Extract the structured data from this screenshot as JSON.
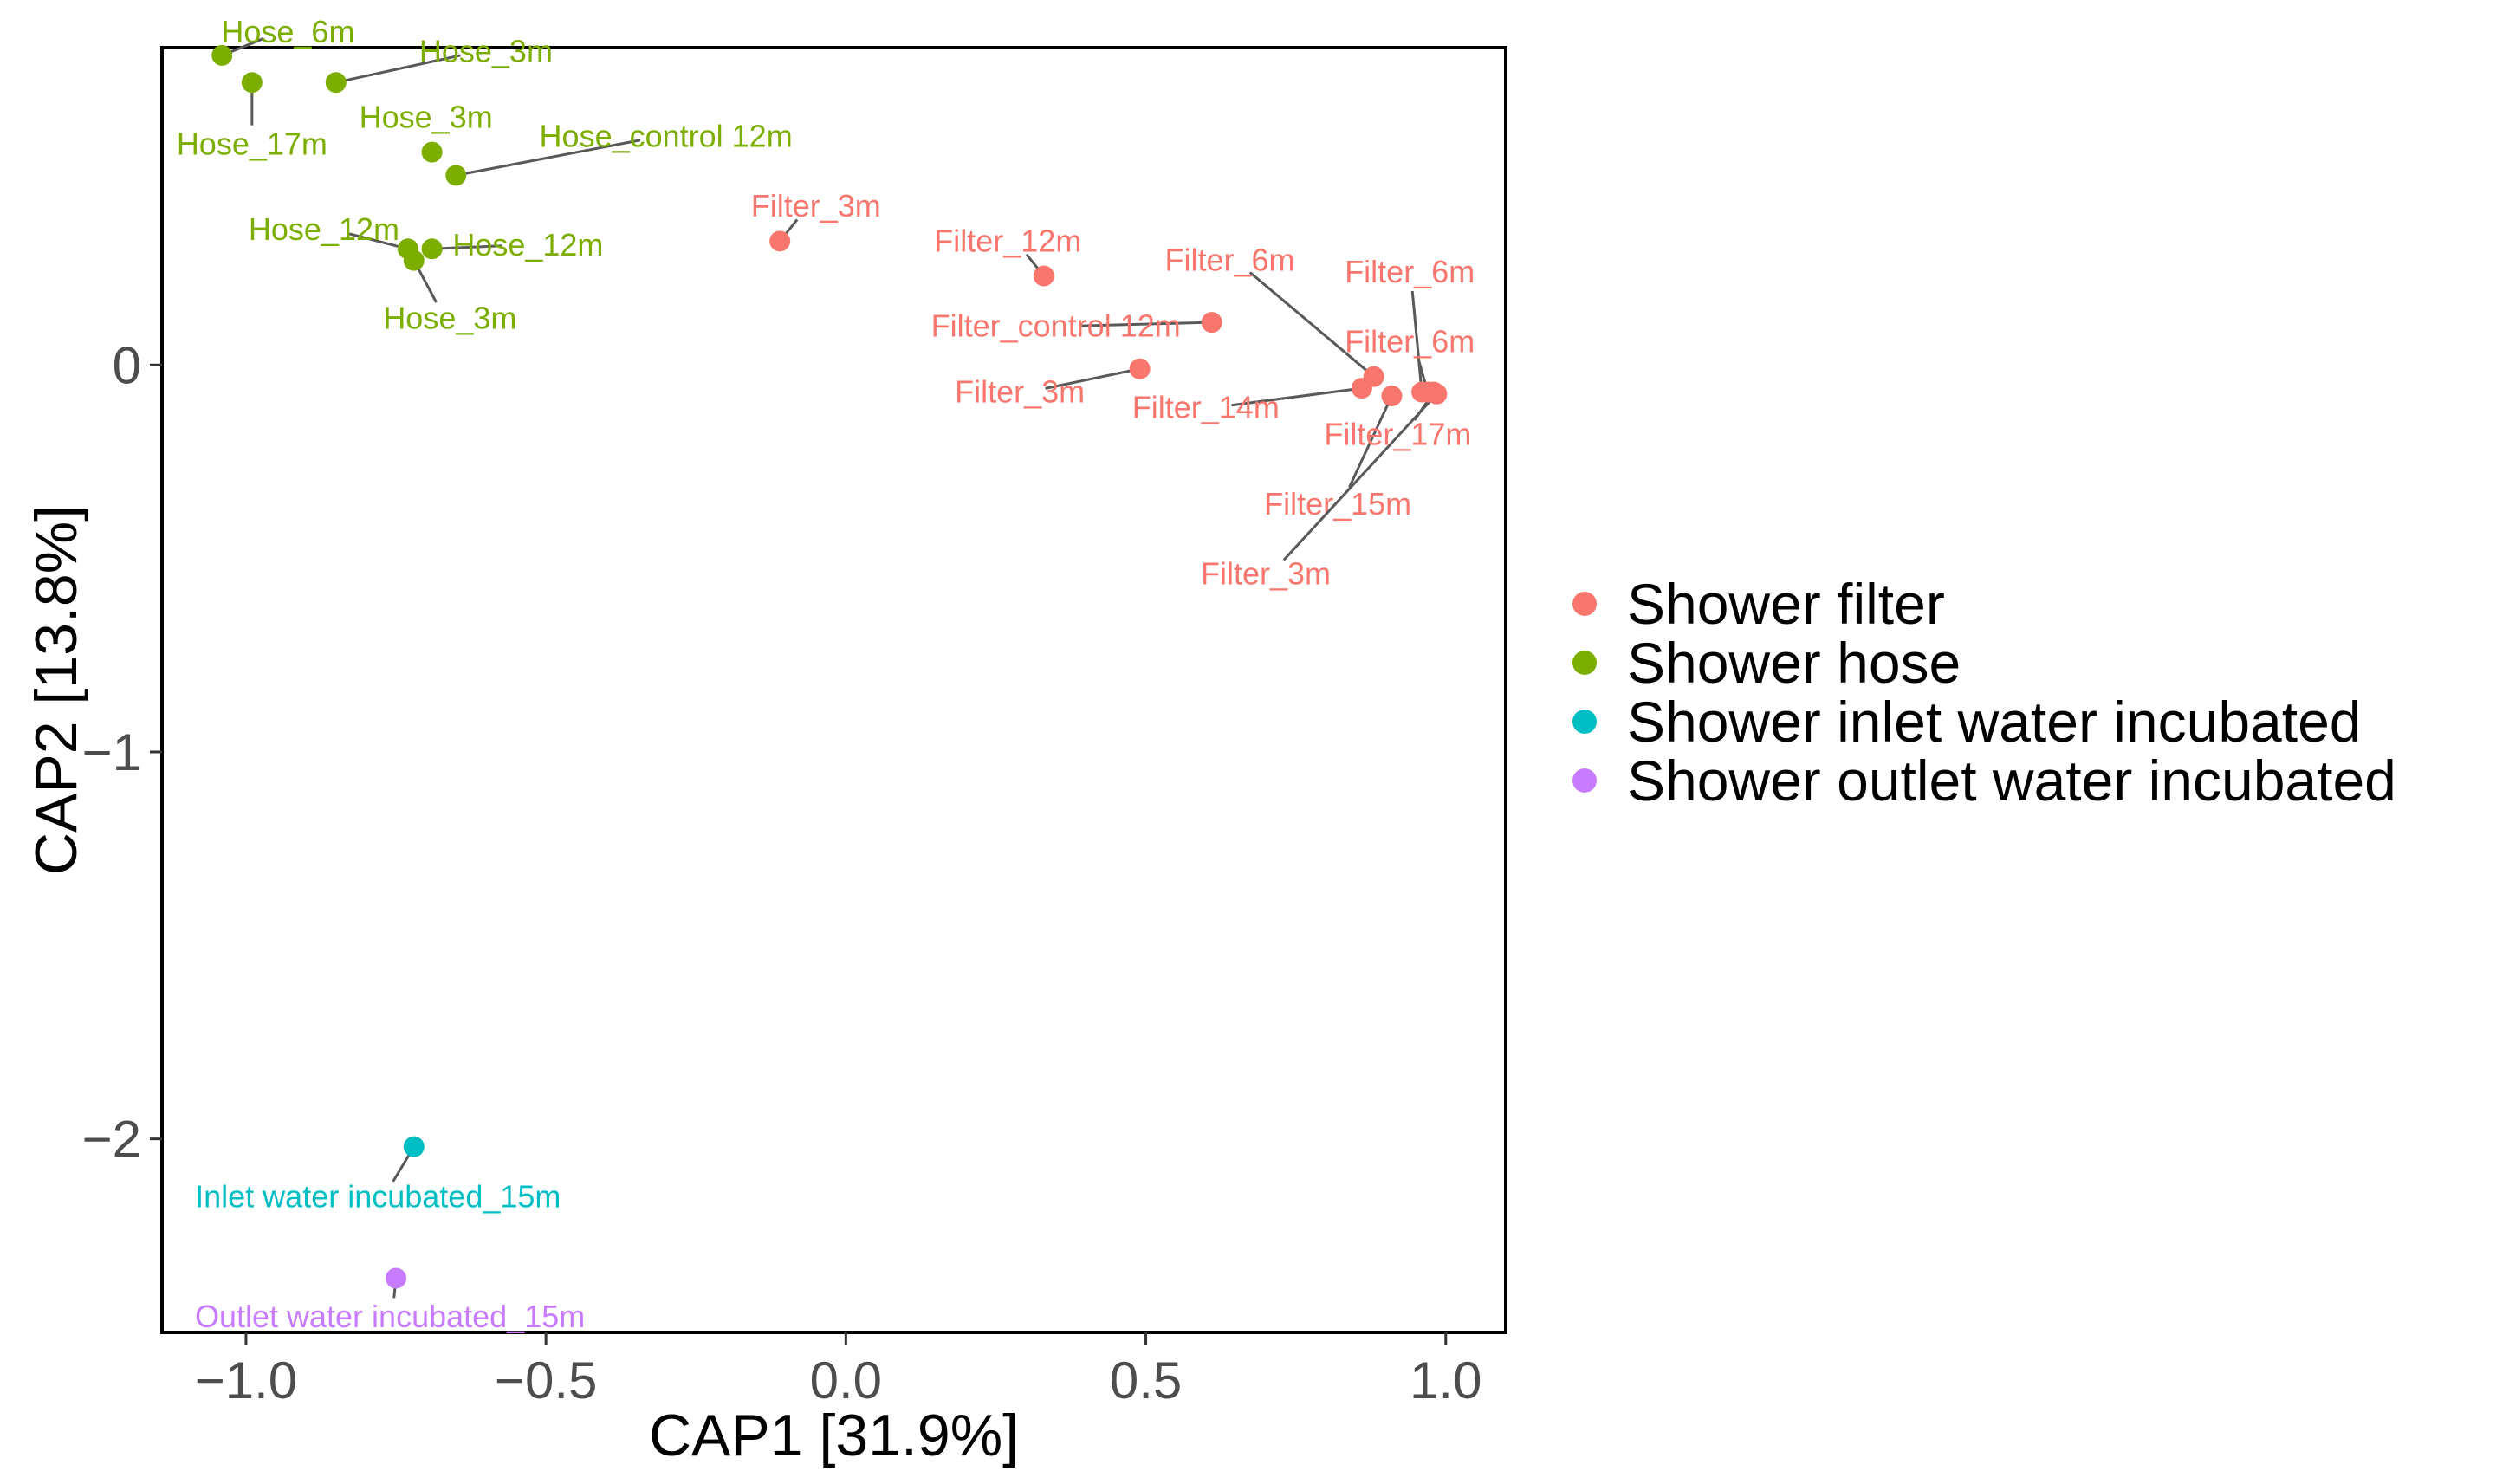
{
  "chart_data": {
    "type": "scatter",
    "title": "",
    "xlabel": "CAP1   [31.9%]",
    "ylabel": "CAP2   [13.8%]",
    "xlim": [
      -1.14,
      1.1
    ],
    "ylim": [
      -2.5,
      0.82
    ],
    "grid": false,
    "legend_position": "right",
    "x_ticks": [
      {
        "value": -1.0,
        "label": "−1.0"
      },
      {
        "value": -0.5,
        "label": "−0.5"
      },
      {
        "value": 0.0,
        "label": "0.0"
      },
      {
        "value": 0.5,
        "label": "0.5"
      },
      {
        "value": 1.0,
        "label": "1.0"
      }
    ],
    "y_ticks": [
      {
        "value": 0,
        "label": "0"
      },
      {
        "value": -1,
        "label": "−1"
      },
      {
        "value": -2,
        "label": "−2"
      }
    ],
    "series": [
      {
        "name": "Shower filter",
        "color": "#F8766D",
        "points": [
          {
            "x": -0.11,
            "y": 0.32,
            "label": "Filter_3m",
            "lx": -0.05,
            "ly": 0.41
          },
          {
            "x": 0.33,
            "y": 0.23,
            "label": "Filter_12m",
            "lx": 0.27,
            "ly": 0.32
          },
          {
            "x": 0.61,
            "y": 0.11,
            "label": "Filter_control 12m",
            "lx": 0.35,
            "ly": 0.1
          },
          {
            "x": 0.49,
            "y": -0.01,
            "label": "Filter_3m",
            "lx": 0.29,
            "ly": -0.07
          },
          {
            "x": 0.86,
            "y": -0.06,
            "label": "Filter_14m",
            "lx": 0.6,
            "ly": -0.11
          },
          {
            "x": 0.88,
            "y": -0.03,
            "label": "Filter_6m",
            "lx": 0.64,
            "ly": 0.27
          },
          {
            "x": 0.91,
            "y": -0.08,
            "label": "Filter_15m",
            "lx": 0.82,
            "ly": -0.36
          },
          {
            "x": 0.96,
            "y": -0.07,
            "label": "Filter_6m",
            "lx": 0.94,
            "ly": 0.24
          },
          {
            "x": 0.97,
            "y": -0.07,
            "label": "Filter_6m",
            "lx": 0.94,
            "ly": 0.06
          },
          {
            "x": 0.98,
            "y": -0.07,
            "label": "Filter_17m",
            "lx": 0.92,
            "ly": -0.18
          },
          {
            "x": 0.985,
            "y": -0.075,
            "label": "Filter_3m",
            "lx": 0.7,
            "ly": -0.54
          }
        ]
      },
      {
        "name": "Shower hose",
        "color": "#7CAE00",
        "points": [
          {
            "x": -1.04,
            "y": 0.8,
            "label": "Hose_6m",
            "lx": -0.93,
            "ly": 0.86
          },
          {
            "x": -0.99,
            "y": 0.73,
            "label": "Hose_17m",
            "lx": -0.99,
            "ly": 0.57
          },
          {
            "x": -0.85,
            "y": 0.73,
            "label": "Hose_3m",
            "lx": -0.6,
            "ly": 0.81
          },
          {
            "x": -0.69,
            "y": 0.55,
            "label": "Hose_3m",
            "lx": -0.7,
            "ly": 0.64
          },
          {
            "x": -0.65,
            "y": 0.49,
            "label": "Hose_control 12m",
            "lx": -0.3,
            "ly": 0.59
          },
          {
            "x": -0.73,
            "y": 0.3,
            "label": "Hose_12m",
            "lx": -0.87,
            "ly": 0.35
          },
          {
            "x": -0.69,
            "y": 0.3,
            "label": "Hose_12m",
            "lx": -0.53,
            "ly": 0.31
          },
          {
            "x": -0.72,
            "y": 0.27,
            "label": "Hose_3m",
            "lx": -0.66,
            "ly": 0.12
          }
        ]
      },
      {
        "name": "Shower inlet water incubated",
        "color": "#00BFC4",
        "points": [
          {
            "x": -0.72,
            "y": -2.02,
            "label": "Inlet water incubated_15m",
            "lx": -0.78,
            "ly": -2.15
          }
        ]
      },
      {
        "name": "Shower outlet water incubated",
        "color": "#C77CFF",
        "points": [
          {
            "x": -0.75,
            "y": -2.36,
            "label": "Outlet water incubated_15m",
            "lx": -0.76,
            "ly": -2.46
          }
        ]
      }
    ]
  }
}
